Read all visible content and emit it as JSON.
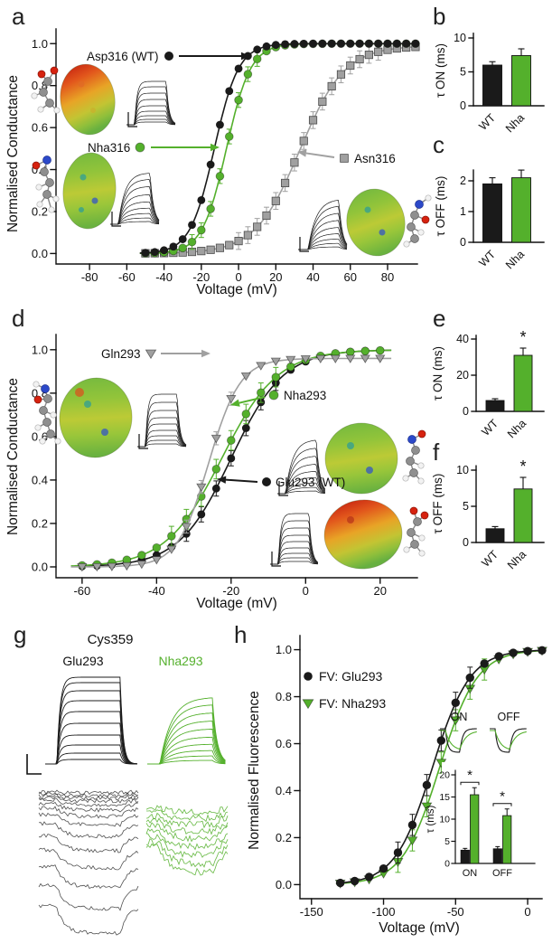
{
  "colors": {
    "black": "#1a1a1a",
    "green": "#54b02c",
    "gray": "#a0a0a0",
    "axis": "#111111",
    "background": "#ffffff"
  },
  "panels": {
    "a": {
      "letter": "a",
      "xlabel": "Voltage (mV)",
      "ylabel": "Normalised Conductance",
      "annotations": {
        "wt": "Asp316 (WT)",
        "nha": "Nha316",
        "asn": "Asn316"
      }
    },
    "b": {
      "letter": "b",
      "ylabel": "τ ON (ms)"
    },
    "c": {
      "letter": "c",
      "ylabel": "τ OFF (ms)"
    },
    "d": {
      "letter": "d",
      "xlabel": "Voltage (mV)",
      "ylabel": "Normalised Conductance",
      "annotations": {
        "gln": "Gln293",
        "nha": "Nha293",
        "wt": "Glu293 (WT)"
      }
    },
    "e": {
      "letter": "e",
      "ylabel": "τ ON (ms)"
    },
    "f": {
      "letter": "f",
      "ylabel": "τ OFF (ms)"
    },
    "g": {
      "letter": "g",
      "title": "Cys359",
      "col1": "Glu293",
      "col2": "Nha293"
    },
    "h": {
      "letter": "h",
      "xlabel": "Voltage (mV)",
      "ylabel": "Normalised Fluorescence",
      "legend": [
        "FV: Glu293",
        "FV: Nha293"
      ],
      "inset": {
        "on": "ON",
        "off": "OFF",
        "tau_label": "τ (ms)"
      }
    }
  },
  "chart_data": [
    {
      "id": "a",
      "type": "scatter",
      "xlabel": "Voltage (mV)",
      "ylabel": "Normalised Conductance",
      "xlim": [
        -98,
        96
      ],
      "ylim": [
        -0.05,
        1.07
      ],
      "xticks": [
        -80,
        -60,
        -40,
        -20,
        0,
        20,
        40,
        60,
        80
      ],
      "yticks": [
        0,
        0.2,
        0.4,
        0.6,
        0.8,
        1
      ],
      "ytick_labels": [
        "0.0",
        "0.2",
        "0.4",
        "0.6",
        "0.8",
        "1.0"
      ],
      "series": [
        {
          "name": "Asp316 (WT)",
          "marker": "circle",
          "color": "black",
          "model": "boltzmann",
          "vhalf": -13,
          "k": 6.5,
          "ymax": 1.0,
          "v_range": [
            -50,
            95
          ],
          "v_step": 5,
          "err": 0,
          "err_band": [
            0,
            0
          ]
        },
        {
          "name": "Nha316",
          "marker": "circle",
          "color": "green",
          "model": "boltzmann",
          "vhalf": -6.5,
          "k": 6.5,
          "ymax": 1.0,
          "v_range": [
            -50,
            95
          ],
          "v_step": 5,
          "err": 0.035,
          "err_band": [
            -25,
            12
          ]
        },
        {
          "name": "Asn316",
          "marker": "square",
          "color": "gray",
          "model": "boltzmann",
          "vhalf": 33,
          "k": 12,
          "ymax": 0.99,
          "v_range": [
            -50,
            95
          ],
          "v_step": 5,
          "err": 0.04,
          "err_band": [
            -2,
            75
          ]
        }
      ]
    },
    {
      "id": "b",
      "type": "bar",
      "ylabel": "τ ON (ms)",
      "categories": [
        "WT",
        "Nha"
      ],
      "values": [
        6.0,
        7.4
      ],
      "errors": [
        0.5,
        1.0
      ],
      "bar_colors": [
        "black",
        "green"
      ],
      "yticks": [
        0,
        5,
        10
      ],
      "ylim": [
        0,
        10.7
      ],
      "sig": [
        "",
        ""
      ]
    },
    {
      "id": "c",
      "type": "bar",
      "ylabel": "τ OFF (ms)",
      "categories": [
        "WT",
        "Nha"
      ],
      "values": [
        1.9,
        2.1
      ],
      "errors": [
        0.2,
        0.25
      ],
      "bar_colors": [
        "black",
        "green"
      ],
      "yticks": [
        0,
        1,
        2
      ],
      "ylim": [
        0,
        2.35
      ],
      "sig": [
        "",
        ""
      ]
    },
    {
      "id": "d",
      "type": "scatter",
      "xlabel": "Voltage (mV)",
      "ylabel": "Normalised Conductance",
      "xlim": [
        -67,
        30
      ],
      "ylim": [
        -0.05,
        1.07
      ],
      "xticks": [
        -60,
        -40,
        -20,
        0,
        20
      ],
      "yticks": [
        0,
        0.2,
        0.4,
        0.6,
        0.8,
        1
      ],
      "ytick_labels": [
        "0.0",
        "0.2",
        "0.4",
        "0.6",
        "0.8",
        "1.0"
      ],
      "series": [
        {
          "name": "Gln293",
          "marker": "triangle-down",
          "color": "gray",
          "model": "boltzmann",
          "vhalf": -26,
          "k": 4.2,
          "ymax": 0.96,
          "v_range": [
            -60,
            20
          ],
          "v_step": 4,
          "err": 0.03,
          "err_band": [
            -34,
            -18
          ]
        },
        {
          "name": "Nha293",
          "marker": "circle",
          "color": "green",
          "model": "boltzmann",
          "vhalf": -22.5,
          "k": 7.5,
          "ymax": 1.0,
          "v_range": [
            -60,
            20
          ],
          "v_step": 4,
          "err": 0.045,
          "err_band": [
            -36,
            -6
          ]
        },
        {
          "name": "Glu293 (WT)",
          "marker": "circle",
          "color": "black",
          "model": "boltzmann",
          "vhalf": -20,
          "k": 7,
          "ymax": 1.0,
          "v_range": [
            -60,
            20
          ],
          "v_step": 4,
          "err": 0.035,
          "err_band": [
            -32,
            -6
          ]
        }
      ]
    },
    {
      "id": "e",
      "type": "bar",
      "ylabel": "τ ON (ms)",
      "categories": [
        "WT",
        "Nha"
      ],
      "values": [
        6,
        31
      ],
      "errors": [
        1,
        4
      ],
      "bar_colors": [
        "black",
        "green"
      ],
      "yticks": [
        0,
        20,
        40
      ],
      "ylim": [
        0,
        42
      ],
      "sig": [
        "",
        "*"
      ]
    },
    {
      "id": "f",
      "type": "bar",
      "ylabel": "τ OFF (ms)",
      "categories": [
        "WT",
        "Nha"
      ],
      "values": [
        1.9,
        7.4
      ],
      "errors": [
        0.3,
        1.6
      ],
      "bar_colors": [
        "black",
        "green"
      ],
      "yticks": [
        0,
        5,
        10
      ],
      "ylim": [
        0,
        10.6
      ],
      "sig": [
        "",
        "*"
      ]
    },
    {
      "id": "h",
      "type": "scatter",
      "xlabel": "Voltage (mV)",
      "ylabel": "Normalised Fluorescence",
      "xlim": [
        -158,
        10
      ],
      "ylim": [
        -0.06,
        1.06
      ],
      "xticks": [
        -150,
        -100,
        -50,
        0
      ],
      "yticks": [
        0,
        0.2,
        0.4,
        0.6,
        0.8,
        1
      ],
      "ytick_labels": [
        "0.0",
        "0.2",
        "0.4",
        "0.6",
        "0.8",
        "1.0"
      ],
      "series": [
        {
          "name": "FV: Glu293",
          "marker": "circle",
          "color": "black",
          "model": "boltzmann",
          "vhalf": -66,
          "k": 13,
          "ymax": 1.0,
          "v_range": [
            -130,
            10
          ],
          "v_step": 10,
          "err": 0.045,
          "err_band": [
            -95,
            -35
          ]
        },
        {
          "name": "FV: Nha293",
          "marker": "triangle-down",
          "color": "green",
          "model": "boltzmann",
          "vhalf": -61,
          "k": 13,
          "ymax": 1.0,
          "v_range": [
            -130,
            10
          ],
          "v_step": 10,
          "err": 0.045,
          "err_band": [
            -90,
            -30
          ]
        }
      ]
    },
    {
      "id": "h_inset",
      "type": "grouped-bar",
      "ylabel": "τ (ms)",
      "groups": [
        "ON",
        "OFF"
      ],
      "series": [
        {
          "name": "Glu293",
          "color": "black",
          "values": [
            3.0,
            3.3
          ],
          "errors": [
            0.4,
            0.5
          ]
        },
        {
          "name": "Nha293",
          "color": "green",
          "values": [
            15.5,
            10.8
          ],
          "errors": [
            1.6,
            1.5
          ]
        }
      ],
      "yticks": [
        0,
        5,
        10,
        15,
        20
      ],
      "ylim": [
        0,
        21
      ],
      "sig": [
        "*",
        "*"
      ]
    }
  ]
}
